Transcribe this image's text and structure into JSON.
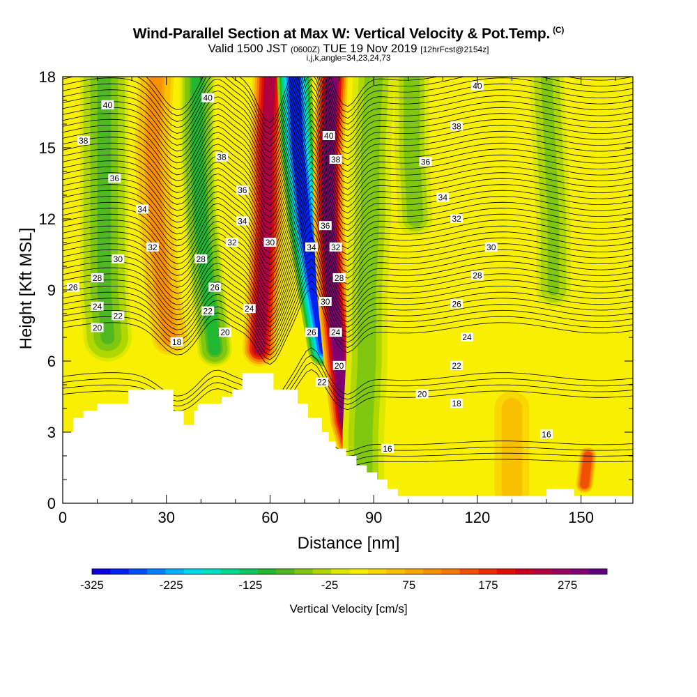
{
  "chart_data": {
    "type": "heatmap",
    "title": "Wind-Parallel Section at Max W: Vertical Velocity & Pot.Temp.",
    "title_mark": "(C)",
    "subtitle": {
      "valid": "Valid 1500 JST",
      "utc": "(0600Z)",
      "date": "TUE 19 Nov 2019",
      "fcst": "[12hrFcst@2154z]"
    },
    "indices": "i,j,k,angle=34,23,24,73",
    "xlabel": "Distance [nm]",
    "ylabel": "Height [Kft MSL]",
    "xlim": [
      0,
      165
    ],
    "ylim": [
      0,
      18
    ],
    "x_ticks": [
      "0",
      "30",
      "60",
      "90",
      "120",
      "150"
    ],
    "y_ticks": [
      "0",
      "3",
      "6",
      "9",
      "12",
      "15",
      "18"
    ],
    "colorbar": {
      "label": "Vertical Velocity [cm/s]",
      "ticks": [
        "-325",
        "-225",
        "-125",
        "-25",
        "75",
        "175",
        "275"
      ],
      "range": [
        -325,
        325
      ],
      "colors": [
        "#0a00e0",
        "#0022f0",
        "#0050f8",
        "#0080ff",
        "#00b0ff",
        "#00d8f0",
        "#00e0c0",
        "#00d890",
        "#10c860",
        "#20b830",
        "#50b820",
        "#80c810",
        "#b0d800",
        "#dce800",
        "#f8f000",
        "#f8d800",
        "#f8c000",
        "#f8a800",
        "#f89000",
        "#f87800",
        "#f05000",
        "#e83000",
        "#e01000",
        "#c80020",
        "#b00040",
        "#980060",
        "#800070",
        "#600080"
      ]
    },
    "isentropes_K": [
      "16",
      "18",
      "20",
      "22",
      "24",
      "26",
      "28",
      "30",
      "32",
      "34",
      "36",
      "38",
      "40"
    ],
    "contour_labels": [
      {
        "text": "40",
        "x": 13,
        "y": 16.8
      },
      {
        "text": "38",
        "x": 6,
        "y": 15.3
      },
      {
        "text": "36",
        "x": 15,
        "y": 13.7
      },
      {
        "text": "34",
        "x": 23,
        "y": 12.4
      },
      {
        "text": "32",
        "x": 26,
        "y": 10.8
      },
      {
        "text": "30",
        "x": 16,
        "y": 10.3
      },
      {
        "text": "28",
        "x": 10,
        "y": 9.5
      },
      {
        "text": "26",
        "x": 3,
        "y": 9.1
      },
      {
        "text": "24",
        "x": 10,
        "y": 8.3
      },
      {
        "text": "22",
        "x": 16,
        "y": 7.9
      },
      {
        "text": "20",
        "x": 10,
        "y": 7.4
      },
      {
        "text": "18",
        "x": 33,
        "y": 6.8
      },
      {
        "text": "40",
        "x": 42,
        "y": 17.1
      },
      {
        "text": "38",
        "x": 46,
        "y": 14.6
      },
      {
        "text": "36",
        "x": 52,
        "y": 13.2
      },
      {
        "text": "34",
        "x": 52,
        "y": 11.9
      },
      {
        "text": "32",
        "x": 49,
        "y": 11.0
      },
      {
        "text": "28",
        "x": 40,
        "y": 10.3
      },
      {
        "text": "26",
        "x": 44,
        "y": 9.1
      },
      {
        "text": "22",
        "x": 42,
        "y": 8.1
      },
      {
        "text": "24",
        "x": 54,
        "y": 8.2
      },
      {
        "text": "20",
        "x": 47,
        "y": 7.2
      },
      {
        "text": "30",
        "x": 60,
        "y": 11.0
      },
      {
        "text": "40",
        "x": 77,
        "y": 15.5
      },
      {
        "text": "38",
        "x": 79,
        "y": 14.5
      },
      {
        "text": "36",
        "x": 76,
        "y": 11.7
      },
      {
        "text": "34",
        "x": 72,
        "y": 10.8
      },
      {
        "text": "32",
        "x": 79,
        "y": 10.8
      },
      {
        "text": "28",
        "x": 80,
        "y": 9.5
      },
      {
        "text": "30",
        "x": 76,
        "y": 8.5
      },
      {
        "text": "26",
        "x": 72,
        "y": 7.2
      },
      {
        "text": "24",
        "x": 79,
        "y": 7.2
      },
      {
        "text": "20",
        "x": 80,
        "y": 5.8
      },
      {
        "text": "22",
        "x": 75,
        "y": 5.1
      },
      {
        "text": "40",
        "x": 120,
        "y": 17.6
      },
      {
        "text": "38",
        "x": 114,
        "y": 15.9
      },
      {
        "text": "36",
        "x": 105,
        "y": 14.4
      },
      {
        "text": "34",
        "x": 110,
        "y": 12.9
      },
      {
        "text": "32",
        "x": 114,
        "y": 12.0
      },
      {
        "text": "30",
        "x": 124,
        "y": 10.8
      },
      {
        "text": "28",
        "x": 120,
        "y": 9.6
      },
      {
        "text": "26",
        "x": 114,
        "y": 8.4
      },
      {
        "text": "24",
        "x": 117,
        "y": 7.0
      },
      {
        "text": "22",
        "x": 114,
        "y": 5.8
      },
      {
        "text": "20",
        "x": 104,
        "y": 4.6
      },
      {
        "text": "18",
        "x": 114,
        "y": 4.2
      },
      {
        "text": "16",
        "x": 94,
        "y": 2.3
      },
      {
        "text": "16",
        "x": 140,
        "y": 2.9
      }
    ],
    "terrain_kft": [
      [
        0,
        3.0
      ],
      [
        3,
        3.0
      ],
      [
        3,
        3.6
      ],
      [
        6,
        3.6
      ],
      [
        6,
        3.9
      ],
      [
        10,
        3.9
      ],
      [
        10,
        4.2
      ],
      [
        19,
        4.2
      ],
      [
        19,
        4.8
      ],
      [
        32,
        4.8
      ],
      [
        32,
        3.9
      ],
      [
        35,
        3.9
      ],
      [
        35,
        3.3
      ],
      [
        38,
        3.3
      ],
      [
        38,
        3.9
      ],
      [
        39,
        3.9
      ],
      [
        39,
        4.2
      ],
      [
        46,
        4.2
      ],
      [
        46,
        4.5
      ],
      [
        49,
        4.5
      ],
      [
        49,
        4.8
      ],
      [
        52,
        4.8
      ],
      [
        52,
        5.5
      ],
      [
        61,
        5.5
      ],
      [
        61,
        4.8
      ],
      [
        68,
        4.8
      ],
      [
        68,
        4.2
      ],
      [
        71,
        4.2
      ],
      [
        71,
        3.6
      ],
      [
        75,
        3.6
      ],
      [
        75,
        3.0
      ],
      [
        77,
        3.0
      ],
      [
        77,
        2.6
      ],
      [
        79,
        2.6
      ],
      [
        79,
        2.3
      ],
      [
        82,
        2.3
      ],
      [
        82,
        2.0
      ],
      [
        85,
        2.0
      ],
      [
        85,
        1.6
      ],
      [
        88,
        1.6
      ],
      [
        88,
        1.3
      ],
      [
        91,
        1.3
      ],
      [
        91,
        1.0
      ],
      [
        94,
        1.0
      ],
      [
        94,
        0.6
      ],
      [
        97,
        0.6
      ],
      [
        97,
        0.3
      ],
      [
        140,
        0.3
      ],
      [
        140,
        0.6
      ],
      [
        148,
        0.6
      ],
      [
        148,
        0.3
      ],
      [
        165,
        0.3
      ],
      [
        165,
        0
      ],
      [
        0,
        0
      ]
    ],
    "updraft_bands": [
      {
        "w": 100,
        "pts": [
          [
            27,
            18
          ],
          [
            26,
            15
          ],
          [
            27,
            12
          ],
          [
            29,
            9
          ],
          [
            31,
            7
          ]
        ],
        "width": 5
      },
      {
        "w": 250,
        "pts": [
          [
            60,
            18
          ],
          [
            59,
            15
          ],
          [
            59,
            12
          ],
          [
            58,
            9
          ],
          [
            57,
            6.5
          ]
        ],
        "width": 4
      },
      {
        "w": -300,
        "pts": [
          [
            67,
            18
          ],
          [
            68,
            15
          ],
          [
            70,
            12
          ],
          [
            73,
            9
          ],
          [
            76,
            6.5
          ]
        ],
        "width": 4
      },
      {
        "w": 300,
        "pts": [
          [
            78,
            18
          ],
          [
            77,
            15
          ],
          [
            77,
            12
          ],
          [
            78,
            9
          ],
          [
            80,
            6
          ],
          [
            82,
            3.5
          ],
          [
            85,
            2
          ]
        ],
        "width": 3.5
      },
      {
        "w": -100,
        "pts": [
          [
            39,
            18
          ],
          [
            39,
            15
          ],
          [
            40,
            12
          ],
          [
            42,
            9
          ],
          [
            44,
            6.5
          ]
        ],
        "width": 4
      },
      {
        "w": -75,
        "pts": [
          [
            12,
            18
          ],
          [
            12,
            15
          ],
          [
            12,
            12
          ],
          [
            12,
            9
          ],
          [
            13,
            7
          ]
        ],
        "width": 6
      },
      {
        "w": -60,
        "pts": [
          [
            90,
            18
          ],
          [
            89,
            15
          ],
          [
            89,
            12
          ],
          [
            88,
            9
          ],
          [
            88,
            6
          ],
          [
            87,
            3
          ],
          [
            87,
            1
          ]
        ],
        "width": 5
      },
      {
        "w": -60,
        "pts": [
          [
            101,
            18
          ],
          [
            101,
            15
          ],
          [
            102,
            12
          ]
        ],
        "width": 4
      },
      {
        "w": -50,
        "pts": [
          [
            140,
            18
          ],
          [
            141,
            15
          ],
          [
            142,
            12
          ],
          [
            142,
            9
          ]
        ],
        "width": 4
      },
      {
        "w": 60,
        "pts": [
          [
            130,
            4
          ],
          [
            130,
            2
          ],
          [
            130,
            0.5
          ]
        ],
        "width": 6
      },
      {
        "w": 150,
        "pts": [
          [
            152,
            2
          ],
          [
            151,
            0.8
          ]
        ],
        "width": 1.5
      }
    ]
  }
}
